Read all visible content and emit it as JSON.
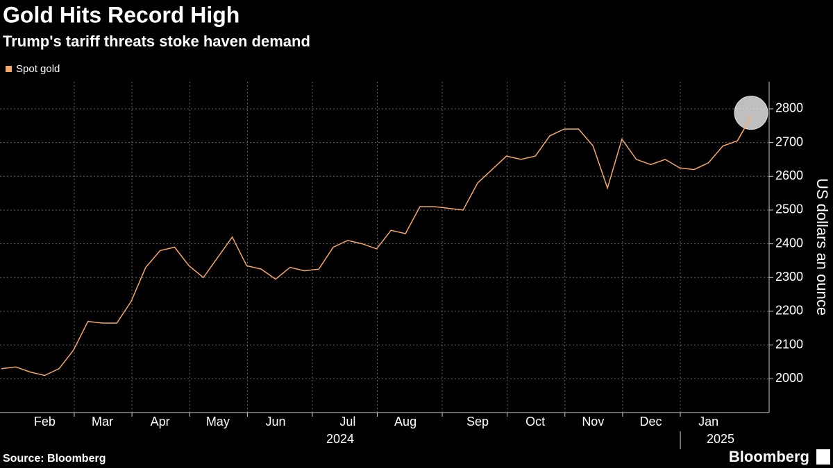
{
  "chart_data": {
    "type": "line",
    "title": "Gold Hits Record High",
    "subtitle": "Trump's tariff threats stoke haven demand",
    "y_axis_label": "US dollars an ounce",
    "source": "Source: Bloomberg",
    "brand": "Bloomberg",
    "year_labels": [
      "2024",
      "2025"
    ],
    "categories": [
      null,
      null,
      null,
      "Feb",
      null,
      null,
      null,
      "Mar",
      null,
      null,
      null,
      "Apr",
      null,
      null,
      null,
      "May",
      null,
      null,
      null,
      "Jun",
      null,
      null,
      null,
      null,
      "Jul",
      null,
      null,
      null,
      "Aug",
      null,
      null,
      null,
      null,
      "Sep",
      null,
      null,
      null,
      "Oct",
      null,
      null,
      null,
      "Nov",
      null,
      null,
      null,
      "Dec",
      null,
      null,
      null,
      "Jan",
      null,
      null,
      null
    ],
    "series": [
      {
        "name": "Spot gold",
        "color": "#f6a766",
        "values": [
          2030,
          2035,
          2020,
          2010,
          2030,
          2085,
          2170,
          2165,
          2165,
          2230,
          2330,
          2380,
          2390,
          2335,
          2300,
          2360,
          2420,
          2335,
          2325,
          2295,
          2330,
          2320,
          2325,
          2390,
          2410,
          2400,
          2385,
          2440,
          2430,
          2510,
          2510,
          2505,
          2500,
          2580,
          2620,
          2660,
          2650,
          2660,
          2720,
          2740,
          2740,
          2690,
          2565,
          2710,
          2650,
          2635,
          2650,
          2625,
          2620,
          2640,
          2690,
          2705,
          2780
        ]
      }
    ],
    "ylim": [
      1900,
      2880
    ],
    "yticks": [
      2000,
      2100,
      2200,
      2300,
      2400,
      2500,
      2600,
      2700,
      2800
    ],
    "grid": true
  }
}
